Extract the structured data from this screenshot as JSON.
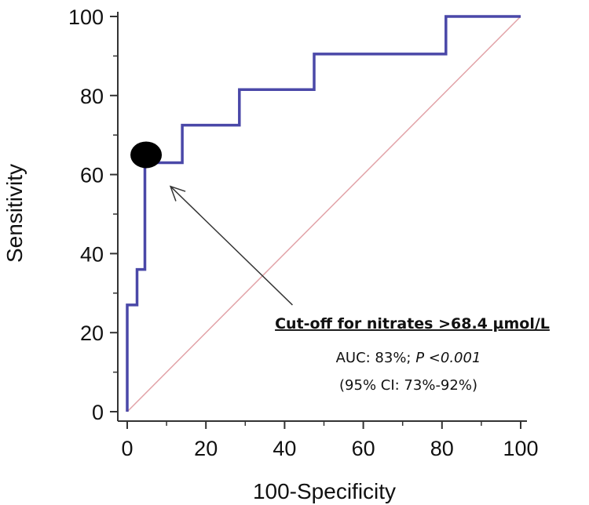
{
  "chart_data": {
    "type": "line",
    "title": "",
    "xlabel": "100-Specificity",
    "ylabel": "Sensitivity",
    "xlim": [
      0,
      100
    ],
    "ylim": [
      0,
      100
    ],
    "x_ticks": [
      "0",
      "20",
      "40",
      "60",
      "80",
      "100"
    ],
    "y_ticks": [
      "0",
      "20",
      "40",
      "60",
      "80",
      "100"
    ],
    "grid": false,
    "legend": "none",
    "series": [
      {
        "color": "#4a48a8",
        "x": [
          0,
          0,
          1,
          1,
          2.5,
          2.5,
          4.5,
          4.5,
          14,
          14,
          28.5,
          28.5,
          45.5,
          45.5,
          47.5,
          47.5,
          81,
          81,
          100
        ],
        "y": [
          0,
          27,
          27,
          27,
          27,
          36,
          36,
          63,
          63,
          72.5,
          72.5,
          81.5,
          81.5,
          81.5,
          81.5,
          90.5,
          90.5,
          100,
          100
        ]
      },
      {
        "color": "#e2a3a8",
        "x": [
          0,
          100
        ],
        "y": [
          0,
          100
        ]
      }
    ],
    "marker": {
      "x": 5,
      "y": 63
    },
    "annotations": {
      "title": "Cut-off for nitrates >68.4 µmol/L",
      "auc_prefix": "AUC: 83%; ",
      "p_label": "P <0.001",
      "ci": "(95% CI: 73%-92%)",
      "arrow_from": {
        "x": 42,
        "y": 27
      },
      "arrow_to": {
        "x": 11,
        "y": 57
      }
    }
  }
}
